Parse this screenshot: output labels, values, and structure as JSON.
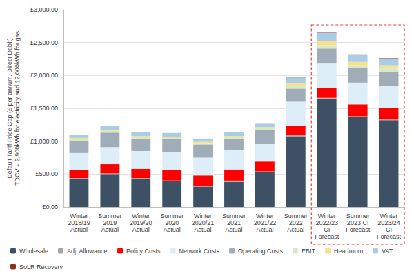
{
  "chart_data": {
    "type": "bar",
    "stacked": true,
    "grid": true,
    "legend": "bottom",
    "y_label": "Default Tariff Price Cap (£ per annum, Direct Debit)\nTDCV = 2,900kWh for electricity and 12,000kWh for gas",
    "categories": [
      "Winter\n2018/19\nActual",
      "Summer\n2019\nActual",
      "Winter\n2019/20\nActual",
      "Summer\n2020\nActual",
      "Winter\n2020/21\nActual",
      "Summer\n2021\nActual",
      "Winter\n2021/22\nActual",
      "Summer\n2022\nActual",
      "Winter\n2022/23\nCI\nForecast",
      "Summer\n2023 CI\nForecast",
      "Winter\n2023/24\nCI\nForecast"
    ],
    "ylim": [
      0,
      3000
    ],
    "yticks": [
      {
        "value": 0,
        "label": "£0.00"
      },
      {
        "value": 500,
        "label": "£500.00"
      },
      {
        "value": 1000,
        "label": "£1,000.00"
      },
      {
        "value": 1500,
        "label": "£1,500.00"
      },
      {
        "value": 2000,
        "label": "£2,000.00"
      },
      {
        "value": 2500,
        "label": "£2,500.00"
      },
      {
        "value": 3000,
        "label": "£3,000.00"
      }
    ],
    "series": [
      {
        "name": "Wholesale",
        "color": "#3e5063",
        "values": [
          430,
          500,
          430,
          390,
          310,
          380,
          530,
          1070,
          1650,
          1370,
          1320
        ]
      },
      {
        "name": "Adj. Allowance",
        "color": "#a6a6a6",
        "values": [
          10,
          10,
          10,
          10,
          10,
          20,
          10,
          20,
          10,
          10,
          10
        ]
      },
      {
        "name": "Policy Costs",
        "color": "#ff0000",
        "values": [
          125,
          140,
          140,
          160,
          160,
          170,
          150,
          140,
          150,
          180,
          180
        ]
      },
      {
        "name": "Network Costs",
        "color": "#ddeef8",
        "values": [
          255,
          260,
          270,
          270,
          270,
          290,
          270,
          370,
          370,
          330,
          330
        ]
      },
      {
        "name": "Operating Costs",
        "color": "#a0adb8",
        "values": [
          190,
          220,
          190,
          200,
          200,
          180,
          210,
          200,
          230,
          220,
          220
        ]
      },
      {
        "name": "EBIT",
        "color": "#d4e9c4",
        "values": [
          20,
          25,
          20,
          20,
          20,
          20,
          25,
          40,
          50,
          45,
          45
        ]
      },
      {
        "name": "Headroom",
        "color": "#f7e08a",
        "values": [
          20,
          20,
          20,
          20,
          20,
          20,
          20,
          40,
          60,
          50,
          50
        ]
      },
      {
        "name": "VAT",
        "color": "#a9cde6",
        "values": [
          50,
          55,
          55,
          55,
          50,
          55,
          60,
          90,
          125,
          110,
          105
        ]
      },
      {
        "name": "SoLR Recovery",
        "color": "#8b2e1a",
        "values": [
          0,
          0,
          0,
          0,
          0,
          0,
          0,
          5,
          5,
          5,
          5
        ]
      }
    ]
  }
}
